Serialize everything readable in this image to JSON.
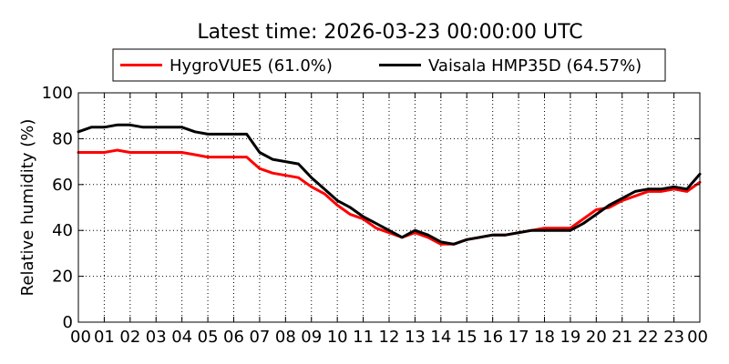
{
  "chart_data": {
    "type": "line",
    "title": "Latest time: 2026-03-23 00:00:00 UTC",
    "xlabel": "",
    "ylabel": "Relative humidity (%)",
    "xlim": [
      0,
      24
    ],
    "ylim": [
      0,
      100
    ],
    "xticks": [
      "00",
      "01",
      "02",
      "03",
      "04",
      "05",
      "06",
      "07",
      "08",
      "09",
      "10",
      "11",
      "12",
      "13",
      "14",
      "15",
      "16",
      "17",
      "18",
      "19",
      "20",
      "21",
      "22",
      "23",
      "00"
    ],
    "yticks": [
      0,
      20,
      40,
      60,
      80,
      100
    ],
    "grid": true,
    "legend_position": "top-center",
    "series": [
      {
        "name": "HygroVUE5 (61.0%)",
        "color": "#ff0000",
        "x": [
          0,
          0.5,
          1,
          1.5,
          2,
          2.5,
          3,
          3.5,
          4,
          4.5,
          5,
          5.5,
          6,
          6.5,
          7,
          7.5,
          8,
          8.5,
          9,
          9.5,
          10,
          10.5,
          11,
          11.5,
          12,
          12.5,
          13,
          13.5,
          14,
          14.5,
          15,
          15.5,
          16,
          16.5,
          17,
          17.5,
          18,
          18.5,
          19,
          19.5,
          20,
          20.5,
          21,
          21.5,
          22,
          22.5,
          23,
          23.5,
          24
        ],
        "values": [
          74,
          74,
          74,
          75,
          74,
          74,
          74,
          74,
          74,
          73,
          72,
          72,
          72,
          72,
          67,
          65,
          64,
          63,
          59,
          56,
          51,
          47,
          45,
          41,
          39,
          37,
          39,
          37,
          34,
          34,
          36,
          37,
          38,
          38,
          39,
          40,
          41,
          41,
          41,
          45,
          49,
          50,
          53,
          55,
          57,
          57,
          58,
          57,
          61
        ]
      },
      {
        "name": "Vaisala HMP35D (64.57%)",
        "color": "#000000",
        "x": [
          0,
          0.5,
          1,
          1.5,
          2,
          2.5,
          3,
          3.5,
          4,
          4.5,
          5,
          5.5,
          6,
          6.5,
          7,
          7.5,
          8,
          8.5,
          9,
          9.5,
          10,
          10.5,
          11,
          11.5,
          12,
          12.5,
          13,
          13.5,
          14,
          14.5,
          15,
          15.5,
          16,
          16.5,
          17,
          17.5,
          18,
          18.5,
          19,
          19.5,
          20,
          20.5,
          21,
          21.5,
          22,
          22.5,
          23,
          23.5,
          24
        ],
        "values": [
          83,
          85,
          85,
          86,
          86,
          85,
          85,
          85,
          85,
          83,
          82,
          82,
          82,
          82,
          74,
          71,
          70,
          69,
          63,
          58,
          53,
          50,
          46,
          43,
          40,
          37,
          40,
          38,
          35,
          34,
          36,
          37,
          38,
          38,
          39,
          40,
          40,
          40,
          40,
          43,
          47,
          51,
          54,
          57,
          58,
          58,
          59,
          58,
          64.57
        ]
      }
    ]
  }
}
